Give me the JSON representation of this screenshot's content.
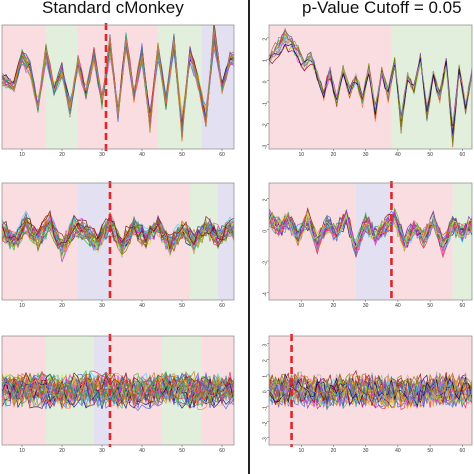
{
  "columns": [
    {
      "title": "Standard cMonkey"
    },
    {
      "title": "p-Value Cutoff = 0.05"
    }
  ],
  "colors": {
    "band_pink": "#f9dde0",
    "band_green": "#e2efdc",
    "band_lavender": "#e3e0f1",
    "cutoff_line": "#e0262b",
    "panel_border": "#888888",
    "divider": "#222222"
  },
  "chart_data": [
    {
      "type": "line",
      "title": "",
      "column": "Standard cMonkey",
      "row": 1,
      "xlim": [
        5,
        63
      ],
      "ylim": [
        -3,
        2.5
      ],
      "xticks": [
        10,
        20,
        30,
        40,
        50,
        60
      ],
      "yticks": [],
      "cutoff_x": 31,
      "bands": [
        {
          "from": 5,
          "to": 16,
          "color": "pink"
        },
        {
          "from": 16,
          "to": 24,
          "color": "green"
        },
        {
          "from": 24,
          "to": 44,
          "color": "pink"
        },
        {
          "from": 44,
          "to": 55,
          "color": "green"
        },
        {
          "from": 55,
          "to": 63,
          "color": "lavender"
        }
      ],
      "series_count": 22,
      "noise": 0.25,
      "mean_profile": {
        "x": [
          5,
          8,
          10,
          12,
          14,
          16,
          18,
          20,
          22,
          24,
          26,
          28,
          30,
          32,
          34,
          36,
          38,
          40,
          42,
          44,
          46,
          48,
          50,
          52,
          54,
          56,
          58,
          60,
          62
        ],
        "y": [
          0.1,
          -0.2,
          1.0,
          0.6,
          -1.1,
          1.3,
          -0.4,
          0.5,
          -1.2,
          0.8,
          -0.5,
          1.1,
          -0.9,
          1.6,
          -1.4,
          1.8,
          -0.6,
          1.2,
          -1.8,
          1.4,
          -0.9,
          1.7,
          -2.1,
          1.2,
          0.0,
          -1.6,
          2.0,
          -0.3,
          1.0
        ]
      }
    },
    {
      "type": "line",
      "title": "",
      "column": "p-Value Cutoff = 0.05",
      "row": 1,
      "xlim": [
        0,
        63
      ],
      "ylim": [
        -3.2,
        2.6
      ],
      "xticks": [
        10,
        20,
        30,
        40,
        50,
        60
      ],
      "yticks": [
        -3,
        -2,
        -1,
        0,
        1,
        2
      ],
      "cutoff_x": null,
      "bands": [
        {
          "from": 0,
          "to": 38,
          "color": "pink"
        },
        {
          "from": 38,
          "to": 63,
          "color": "green"
        }
      ],
      "series_count": 14,
      "noise": 0.22,
      "mean_profile": {
        "x": [
          0,
          3,
          5,
          7,
          9,
          11,
          13,
          15,
          17,
          19,
          21,
          23,
          25,
          27,
          29,
          31,
          33,
          35,
          37,
          39,
          41,
          43,
          45,
          47,
          49,
          51,
          53,
          55,
          57,
          59,
          61,
          63
        ],
        "y": [
          1.0,
          1.6,
          2.0,
          1.7,
          1.3,
          0.8,
          1.1,
          0.3,
          -0.6,
          0.4,
          -1.0,
          0.5,
          -0.5,
          0.1,
          -0.9,
          0.6,
          -1.5,
          0.4,
          -0.7,
          0.9,
          -2.0,
          0.2,
          -0.4,
          1.0,
          -1.6,
          0.3,
          -0.8,
          0.9,
          -2.6,
          0.5,
          -1.2,
          0.4
        ]
      }
    },
    {
      "type": "line",
      "title": "",
      "column": "Standard cMonkey",
      "row": 2,
      "xlim": [
        5,
        63
      ],
      "ylim": [
        -4,
        3
      ],
      "xticks": [
        10,
        20,
        30,
        40,
        50,
        60
      ],
      "yticks": [],
      "cutoff_x": 32,
      "bands": [
        {
          "from": 5,
          "to": 24,
          "color": "pink"
        },
        {
          "from": 24,
          "to": 32,
          "color": "lavender"
        },
        {
          "from": 32,
          "to": 52,
          "color": "pink"
        },
        {
          "from": 52,
          "to": 59,
          "color": "green"
        },
        {
          "from": 59,
          "to": 63,
          "color": "lavender"
        }
      ],
      "series_count": 30,
      "noise": 0.55,
      "mean_profile": {
        "x": [
          5,
          8,
          11,
          14,
          17,
          20,
          23,
          26,
          29,
          32,
          35,
          38,
          41,
          44,
          47,
          50,
          53,
          56,
          59,
          62
        ],
        "y": [
          0.2,
          -0.5,
          0.6,
          -0.3,
          0.8,
          -0.9,
          0.4,
          0.1,
          -0.6,
          0.7,
          -0.8,
          0.5,
          -0.3,
          0.6,
          -0.7,
          0.3,
          -0.5,
          0.4,
          -0.2,
          0.3
        ]
      }
    },
    {
      "type": "line",
      "title": "",
      "column": "p-Value Cutoff = 0.05",
      "row": 2,
      "xlim": [
        0,
        63
      ],
      "ylim": [
        -4.5,
        3
      ],
      "xticks": [
        10,
        20,
        30,
        40,
        50,
        60
      ],
      "yticks": [
        -4,
        -2,
        0,
        2
      ],
      "cutoff_x": 38,
      "bands": [
        {
          "from": 0,
          "to": 27,
          "color": "pink"
        },
        {
          "from": 27,
          "to": 38,
          "color": "lavender"
        },
        {
          "from": 38,
          "to": 57,
          "color": "pink"
        },
        {
          "from": 57,
          "to": 63,
          "color": "green"
        }
      ],
      "series_count": 26,
      "noise": 0.5,
      "mean_profile": {
        "x": [
          0,
          3,
          6,
          9,
          12,
          15,
          18,
          21,
          24,
          27,
          30,
          33,
          36,
          39,
          42,
          45,
          48,
          51,
          54,
          57,
          60,
          63
        ],
        "y": [
          0.8,
          0.2,
          0.6,
          -0.4,
          0.7,
          -0.8,
          0.3,
          -0.2,
          0.9,
          -1.2,
          0.5,
          -0.4,
          0.2,
          0.8,
          -0.9,
          0.1,
          -0.5,
          0.6,
          -1.0,
          0.3,
          -0.2,
          0.4
        ]
      }
    },
    {
      "type": "line",
      "title": "",
      "column": "Standard cMonkey",
      "row": 3,
      "xlim": [
        5,
        63
      ],
      "ylim": [
        -3.5,
        3.5
      ],
      "xticks": [
        10,
        20,
        30,
        40,
        50,
        60
      ],
      "yticks": [],
      "cutoff_x": 32,
      "bands": [
        {
          "from": 5,
          "to": 16,
          "color": "pink"
        },
        {
          "from": 16,
          "to": 28,
          "color": "green"
        },
        {
          "from": 28,
          "to": 32,
          "color": "lavender"
        },
        {
          "from": 32,
          "to": 45,
          "color": "pink"
        },
        {
          "from": 45,
          "to": 55,
          "color": "green"
        },
        {
          "from": 55,
          "to": 63,
          "color": "pink"
        }
      ],
      "series_count": 40,
      "noise": 0.9,
      "mean_profile": {
        "x": [
          5,
          12,
          19,
          26,
          33,
          40,
          47,
          54,
          62
        ],
        "y": [
          0.0,
          0.1,
          -0.1,
          0.1,
          0.0,
          -0.1,
          0.1,
          0.0,
          0.0
        ]
      }
    },
    {
      "type": "line",
      "title": "",
      "column": "p-Value Cutoff = 0.05",
      "row": 3,
      "xlim": [
        0,
        63
      ],
      "ylim": [
        -3.5,
        3.5
      ],
      "xticks": [
        10,
        20,
        30,
        40,
        50,
        60
      ],
      "yticks": [
        -3,
        -2,
        -1,
        0,
        1,
        2,
        3
      ],
      "cutoff_x": 7,
      "bands": [
        {
          "from": 0,
          "to": 63,
          "color": "pink"
        }
      ],
      "series_count": 34,
      "noise": 0.85,
      "mean_profile": {
        "x": [
          0,
          9,
          18,
          27,
          36,
          45,
          54,
          63
        ],
        "y": [
          0.0,
          0.1,
          -0.1,
          0.1,
          0.0,
          -0.1,
          0.1,
          0.0
        ]
      }
    }
  ]
}
